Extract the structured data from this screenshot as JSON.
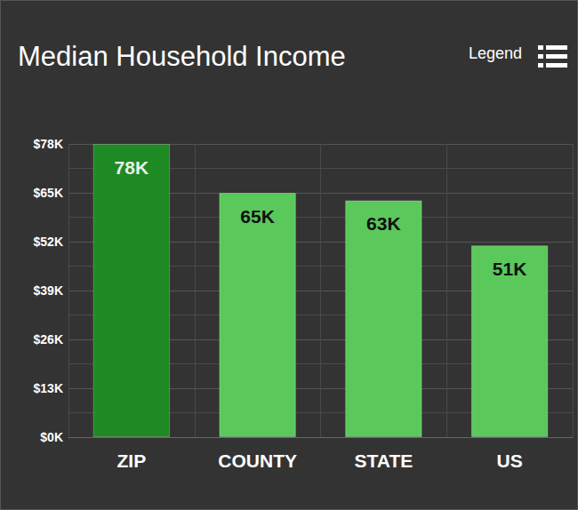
{
  "chart_data": {
    "type": "bar",
    "title": "Median Household Income",
    "annotations": [
      "Legend"
    ],
    "categories": [
      "ZIP",
      "COUNTY",
      "STATE",
      "US"
    ],
    "values": [
      78,
      65,
      63,
      51
    ],
    "value_labels": [
      "78K",
      "65K",
      "63K",
      "51K"
    ],
    "colors": [
      "#1f8a24",
      "#5bc85c",
      "#5bc85c",
      "#5bc85c"
    ],
    "ylim": [
      0,
      78
    ],
    "yticks": [
      {
        "value": 0,
        "label": "$0K"
      },
      {
        "value": 13,
        "label": "$13K"
      },
      {
        "value": 26,
        "label": "$26K"
      },
      {
        "value": 39,
        "label": "$39K"
      },
      {
        "value": 52,
        "label": "$52K"
      },
      {
        "value": 65,
        "label": "$65K"
      },
      {
        "value": 78,
        "label": "$78K"
      }
    ],
    "grid": true,
    "data_labels": true
  }
}
